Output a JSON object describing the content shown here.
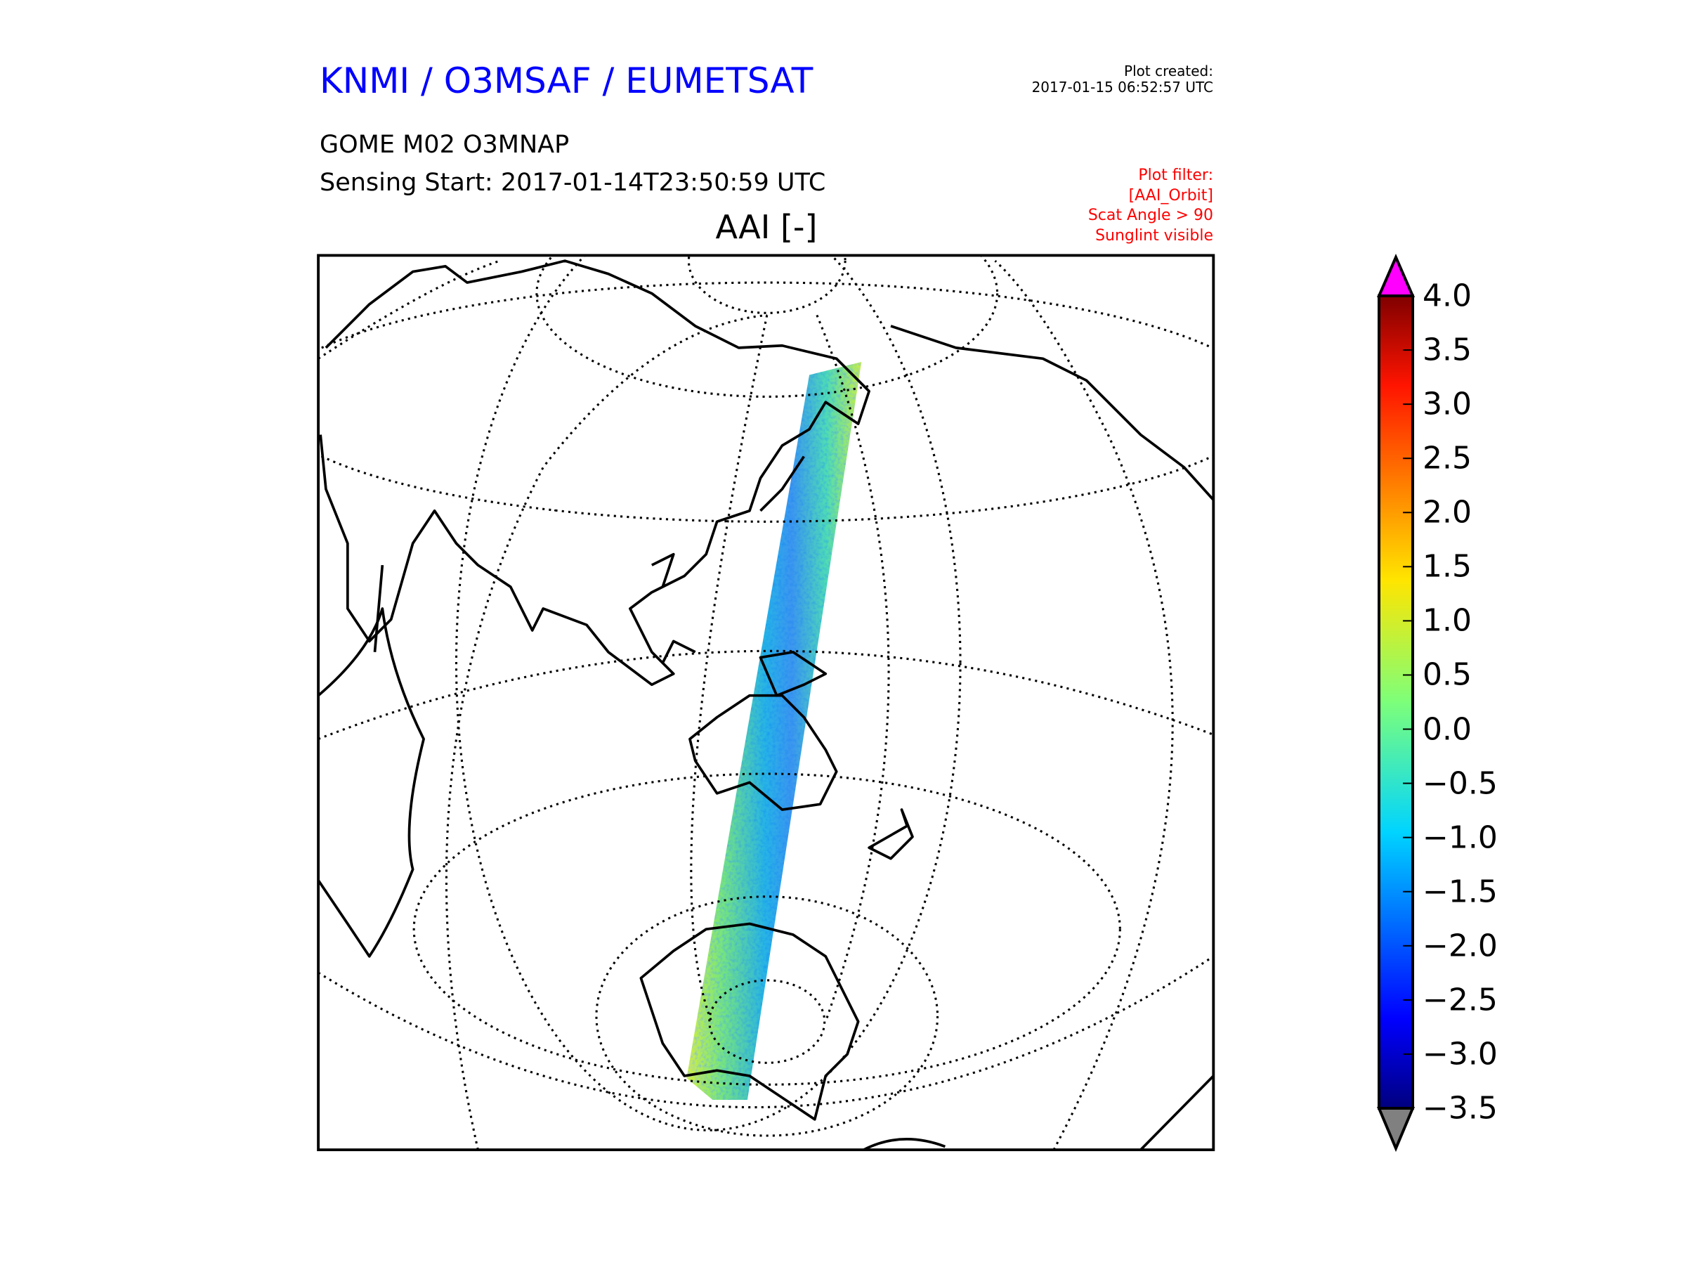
{
  "header": {
    "title": "KNMI / O3MSAF / EUMETSAT",
    "product": "GOME M02 O3MNAP",
    "sensing_start": "Sensing Start: 2017-01-14T23:50:59 UTC",
    "plot_created_label": "Plot created:",
    "plot_created_value": "2017-01-15 06:52:57 UTC",
    "filter": [
      "Plot filter:",
      "[AAI_Orbit]",
      "Scat Angle > 90",
      "Sunglint visible"
    ]
  },
  "map": {
    "title": "AAI [-]",
    "swath_colors": {
      "edge": "#c8f03c",
      "mid": "#3cd2c8",
      "core": "#1e8cf0"
    }
  },
  "colorbar": {
    "min": -3.5,
    "max": 4.0,
    "ticks": [
      "4.0",
      "3.5",
      "3.0",
      "2.5",
      "2.0",
      "1.5",
      "1.0",
      "0.5",
      "0.0",
      "−0.5",
      "−1.0",
      "−1.5",
      "−2.0",
      "−2.5",
      "−3.0",
      "−3.5"
    ],
    "over_color": "#ff00ff",
    "under_color": "#808080"
  }
}
